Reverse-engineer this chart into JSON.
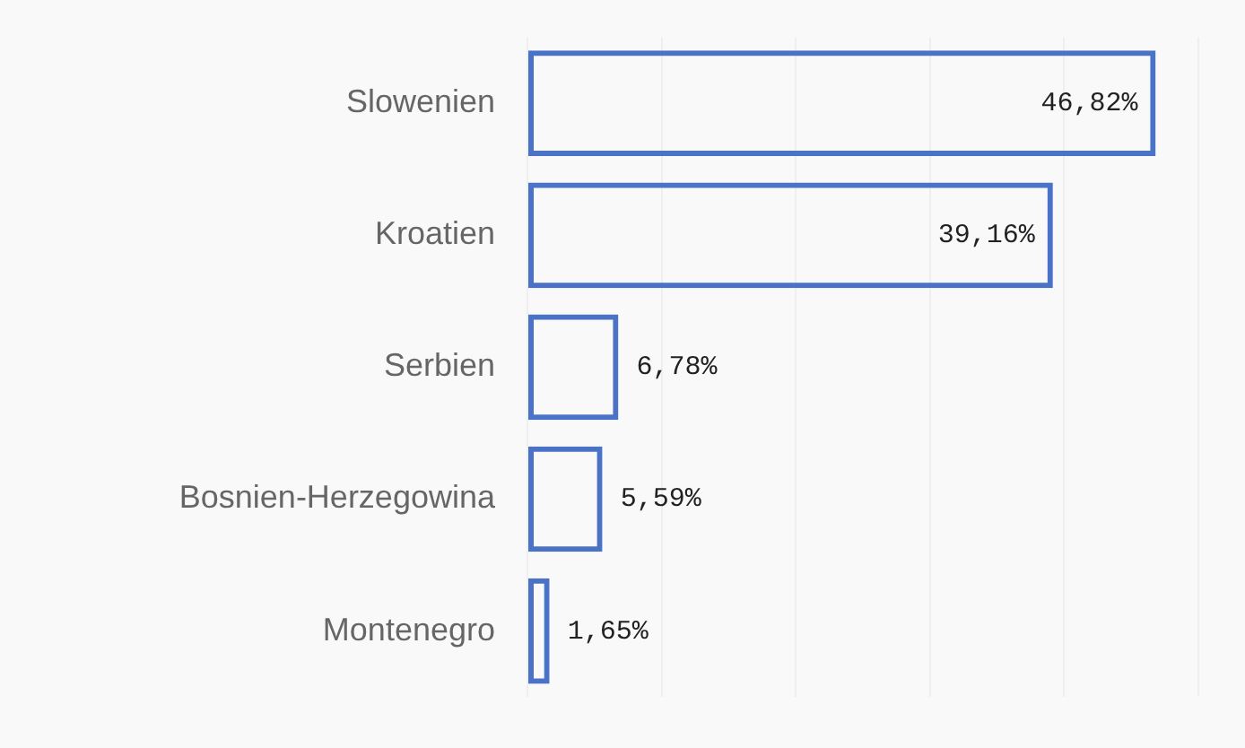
{
  "chart_data": {
    "type": "bar",
    "orientation": "horizontal",
    "categories": [
      "Slowenien",
      "Kroatien",
      "Serbien",
      "Bosnien-Herzegowina",
      "Montenegro"
    ],
    "values": [
      46.82,
      39.16,
      6.78,
      5.59,
      1.65
    ],
    "value_labels": [
      "46,82%",
      "39,16%",
      "6,78%",
      "5,59%",
      "1,65%"
    ],
    "color": "#4a73c8",
    "xticks": [
      {
        "value": 0,
        "label": null
      },
      {
        "value": 10,
        "label": null
      },
      {
        "value": 20,
        "label": null
      },
      {
        "value": 30,
        "label": null
      },
      {
        "value": 40,
        "label": null
      },
      {
        "value": 50,
        "label": null
      }
    ],
    "grid": "x"
  }
}
